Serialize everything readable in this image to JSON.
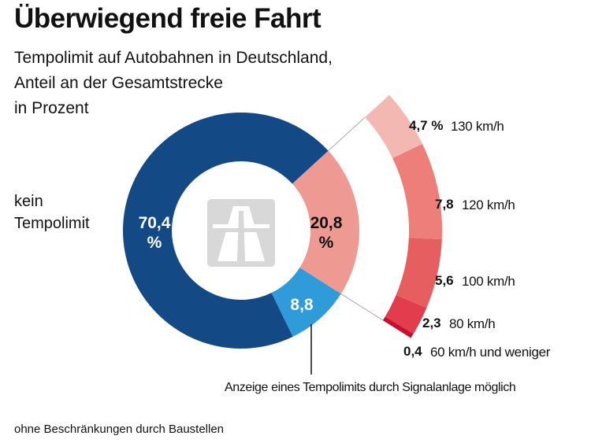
{
  "chart_data": {
    "type": "donut",
    "title": "Überwiegend freie Fahrt",
    "subtitle": [
      "Tempolimit auf Autobahnen in Deutschland,",
      "Anteil an der Gesamtstrecke",
      "in Prozent"
    ],
    "categories": [
      "kein Tempolimit",
      null,
      "Anzeige eines Tempolimits durch Signalanlage möglich"
    ],
    "values": [
      70.4,
      20.8,
      8.8
    ],
    "value_labels": [
      "70,4 %",
      "20,8 %",
      "8,8"
    ],
    "colors": [
      "#134a86",
      "#ee9a92",
      "#2f9bd9"
    ],
    "breakdown": {
      "categories": [
        "130 km/h",
        "120 km/h",
        "100 km/h",
        "80 km/h",
        "60 km/h und weniger"
      ],
      "values": [
        4.7,
        7.8,
        5.6,
        2.3,
        0.4
      ],
      "value_labels": [
        "4,7 %",
        "7,8",
        "5,6",
        "2,3",
        "0,4"
      ],
      "colors": [
        "#f3b8b1",
        "#ed7e7a",
        "#e75e60",
        "#e23d4c",
        "#c8102e"
      ]
    },
    "footnote": "ohne Beschränkungen durch Baustellen"
  }
}
